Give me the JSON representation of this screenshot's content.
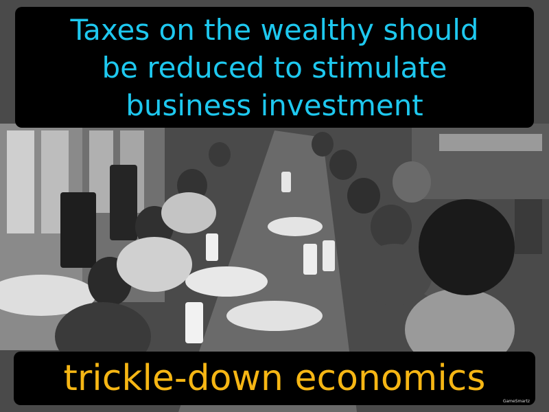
{
  "definition": {
    "line1": "Taxes on the wealthy should",
    "line2": "be reduced to stimulate",
    "line3": "business investment"
  },
  "term": "trickle-down economics",
  "watermark": "GameSmartz",
  "colors": {
    "definition_text": "#1ec8ef",
    "term_text": "#f6b614",
    "box_background": "#000000"
  }
}
